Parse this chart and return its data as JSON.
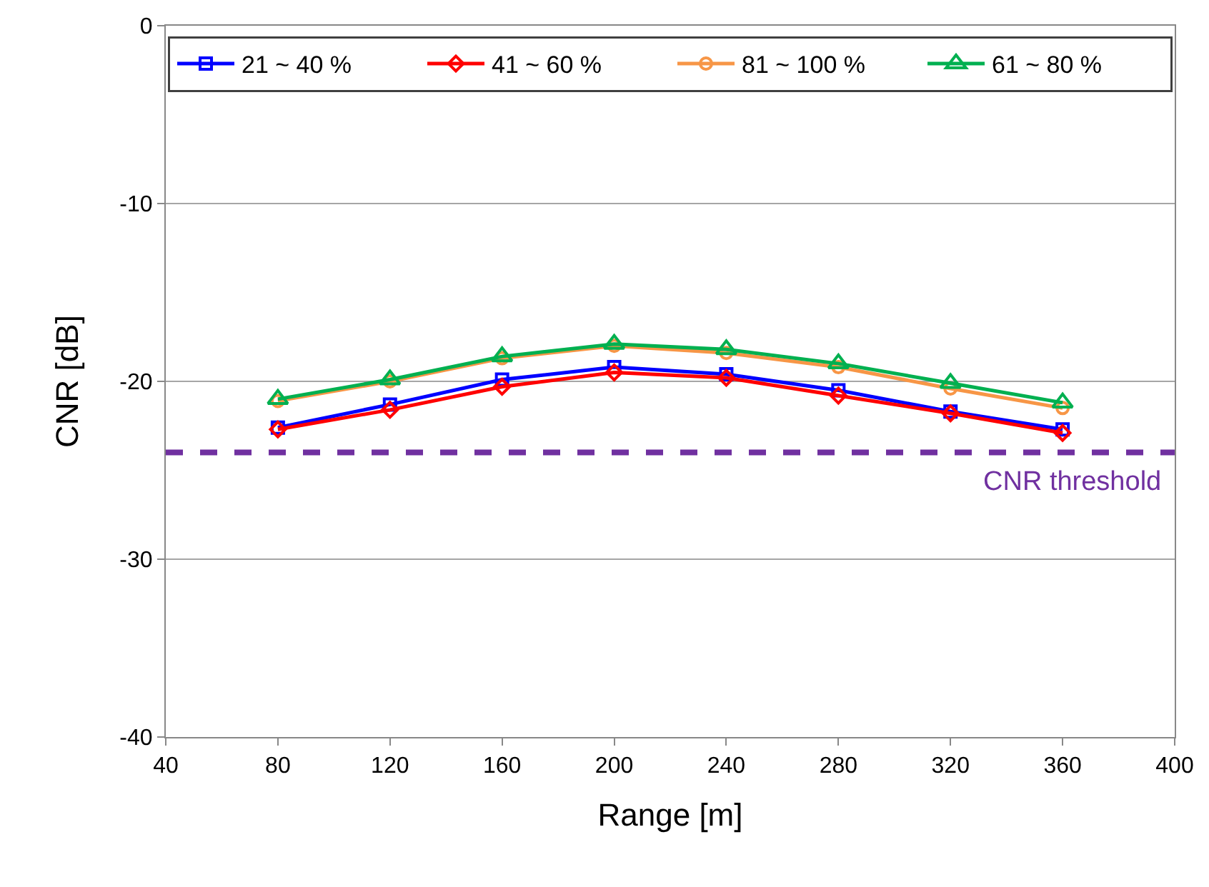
{
  "chart_data": {
    "type": "line",
    "xlabel": "Range [m]",
    "ylabel": "CNR [dB]",
    "x": [
      80,
      120,
      160,
      200,
      240,
      280,
      320,
      360
    ],
    "series": [
      {
        "name": "21 ~ 40 %",
        "color": "#0000ff",
        "marker": "square",
        "values": [
          -22.6,
          -21.3,
          -19.9,
          -19.2,
          -19.6,
          -20.5,
          -21.7,
          -22.7
        ]
      },
      {
        "name": "41 ~ 60 %",
        "color": "#ff0000",
        "marker": "diamond",
        "values": [
          -22.7,
          -21.6,
          -20.3,
          -19.5,
          -19.8,
          -20.8,
          -21.8,
          -22.9
        ]
      },
      {
        "name": "61 ~ 80 %",
        "color": "#00b050",
        "marker": "triangle",
        "values": [
          -21.0,
          -19.9,
          -18.6,
          -17.9,
          -18.2,
          -19.0,
          -20.1,
          -21.2
        ]
      },
      {
        "name": "81 ~ 100 %",
        "color": "#f79646",
        "marker": "circle",
        "values": [
          -21.1,
          -20.0,
          -18.7,
          -18.0,
          -18.4,
          -19.2,
          -20.4,
          -21.5
        ]
      }
    ],
    "xlim": [
      40,
      400
    ],
    "xticks": [
      40,
      80,
      120,
      160,
      200,
      240,
      280,
      320,
      360,
      400
    ],
    "ylim": [
      -40,
      0
    ],
    "yticks": [
      -40,
      -30,
      -20,
      -10,
      0
    ],
    "grid": "y",
    "legend": "top",
    "ref_lines": [
      {
        "axis": "y",
        "value": -24,
        "label": "CNR threshold",
        "color": "#7030a0",
        "line_style": "dashed"
      }
    ]
  }
}
